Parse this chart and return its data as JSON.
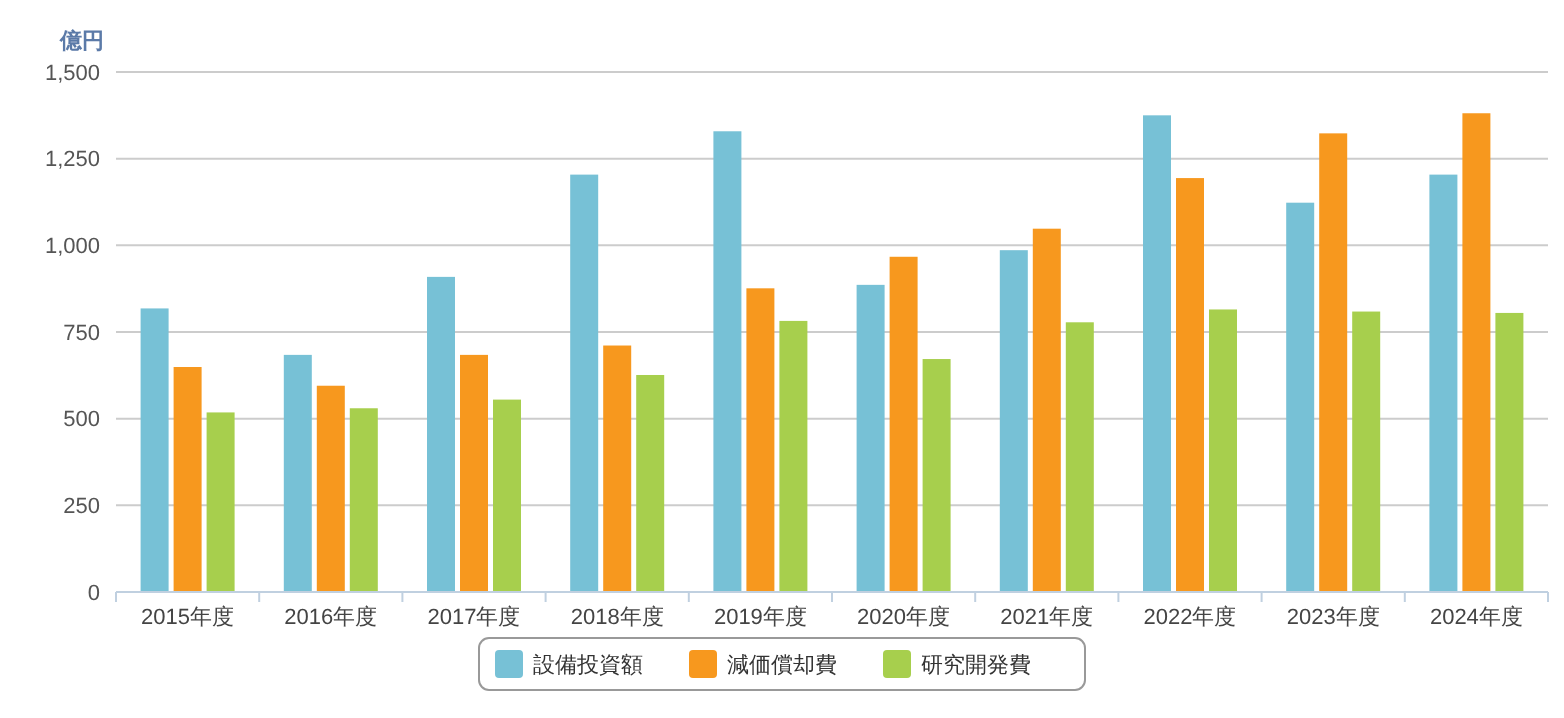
{
  "chart_data": {
    "type": "bar",
    "ylabel": "億円",
    "categories": [
      "2015年度",
      "2016年度",
      "2017年度",
      "2018年度",
      "2019年度",
      "2020年度",
      "2021年度",
      "2022年度",
      "2023年度",
      "2024年度"
    ],
    "series": [
      {
        "name": "設備投資額",
        "color": "#77c1d6",
        "values": [
          818,
          684,
          909,
          1204,
          1329,
          886,
          986,
          1375,
          1123,
          1204
        ]
      },
      {
        "name": "減価償却費",
        "color": "#f7981e",
        "values": [
          649,
          595,
          684,
          711,
          876,
          967,
          1048,
          1194,
          1323,
          1381
        ]
      },
      {
        "name": "研究開発費",
        "color": "#a7cf4d",
        "values": [
          518,
          530,
          555,
          626,
          782,
          672,
          778,
          815,
          809,
          805
        ]
      }
    ],
    "ylim": [
      0,
      1500
    ],
    "yticks": [
      {
        "value": 0,
        "label": "0"
      },
      {
        "value": 250,
        "label": "250"
      },
      {
        "value": 500,
        "label": "500"
      },
      {
        "value": 750,
        "label": "750"
      },
      {
        "value": 1000,
        "label": "1,000"
      },
      {
        "value": 1250,
        "label": "1,250"
      },
      {
        "value": 1500,
        "label": "1,500"
      }
    ],
    "grid": "y",
    "legend": "bottom"
  }
}
